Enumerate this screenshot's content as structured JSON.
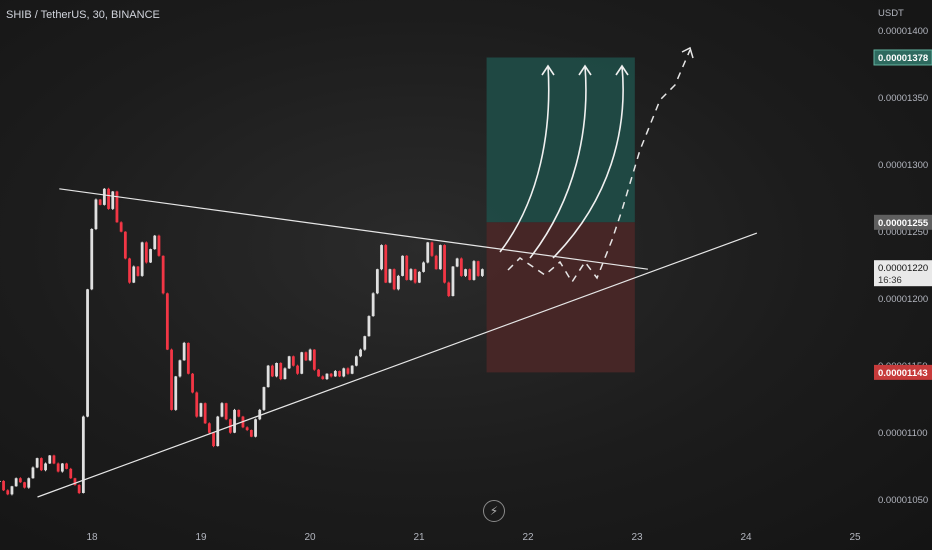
{
  "header": {
    "symbol_line": "SHIB / TetherUS, 30, BINANCE"
  },
  "icons": {
    "bolt": "lightning-bolt-icon"
  },
  "colors": {
    "up_candle": "#e0e0e0",
    "down_candle": "#f23645",
    "target_zone": "#1f4c47",
    "stop_zone": "#4a2727",
    "price_label_target": "#2e6a5f",
    "price_label_stop": "#c73b3b",
    "price_label_entry": "#5f5f5f",
    "price_label_current": "#e9e9e9"
  },
  "chart_data": {
    "type": "candlestick",
    "title": "SHIB / TetherUS, 30, BINANCE",
    "y_unit": "USDT",
    "x_tick_labels": [
      "18",
      "19",
      "20",
      "21",
      "22",
      "23",
      "24",
      "25"
    ],
    "y_tick_labels": [
      "0.00001400",
      "0.00001350",
      "0.00001300",
      "0.00001250",
      "0.00001200",
      "0.00001150",
      "0.00001100",
      "0.00001050"
    ],
    "ylim": [
      1.04e-05,
      1.41e-05
    ],
    "x_start_day": 17.15,
    "closes": [
      1.062e-05,
      1.055e-05,
      1.052e-05,
      1.058e-05,
      1.064e-05,
      1.061e-05,
      1.057e-05,
      1.064e-05,
      1.072e-05,
      1.079e-05,
      1.07e-05,
      1.075e-05,
      1.081e-05,
      1.075e-05,
      1.069e-05,
      1.075e-05,
      1.071e-05,
      1.064e-05,
      1.059e-05,
      1.053e-05,
      1.11e-05,
      1.205e-05,
      1.25e-05,
      1.272e-05,
      1.268e-05,
      1.28e-05,
      1.265e-05,
      1.278e-05,
      1.255e-05,
      1.248e-05,
      1.228e-05,
      1.21e-05,
      1.222e-05,
      1.215e-05,
      1.24e-05,
      1.225e-05,
      1.235e-05,
      1.245e-05,
      1.23e-05,
      1.202e-05,
      1.16e-05,
      1.115e-05,
      1.14e-05,
      1.152e-05,
      1.165e-05,
      1.142e-05,
      1.128e-05,
      1.11e-05,
      1.12e-05,
      1.105e-05,
      1.098e-05,
      1.088e-05,
      1.11e-05,
      1.12e-05,
      1.108e-05,
      1.098e-05,
      1.115e-05,
      1.11e-05,
      1.102e-05,
      1.1e-05,
      1.095e-05,
      1.108e-05,
      1.115e-05,
      1.132e-05,
      1.148e-05,
      1.14e-05,
      1.15e-05,
      1.138e-05,
      1.146e-05,
      1.155e-05,
      1.148e-05,
      1.142e-05,
      1.158e-05,
      1.152e-05,
      1.16e-05,
      1.145e-05,
      1.14e-05,
      1.138e-05,
      1.142e-05,
      1.14e-05,
      1.144e-05,
      1.14e-05,
      1.146e-05,
      1.142e-05,
      1.148e-05,
      1.155e-05,
      1.16e-05,
      1.17e-05,
      1.185e-05,
      1.202e-05,
      1.22e-05,
      1.238e-05,
      1.21e-05,
      1.22e-05,
      1.205e-05,
      1.215e-05,
      1.23e-05,
      1.212e-05,
      1.22e-05,
      1.21e-05,
      1.218e-05,
      1.225e-05,
      1.24e-05,
      1.23e-05,
      1.22e-05,
      1.238e-05,
      1.21e-05,
      1.2e-05,
      1.222e-05,
      1.228e-05,
      1.215e-05,
      1.22e-05,
      1.212e-05,
      1.226e-05,
      1.215e-05,
      1.22e-05
    ],
    "current_price": 1.22e-05,
    "price_labels": [
      {
        "kind": "target",
        "value": 1.378e-05,
        "text": "0.00001378"
      },
      {
        "kind": "entry",
        "value": 1.255e-05,
        "text": "0.00001255"
      },
      {
        "kind": "current",
        "value": 1.22e-05,
        "text": "0.00001220",
        "countdown": "16:36"
      },
      {
        "kind": "stop",
        "value": 1.143e-05,
        "text": "0.00001143"
      }
    ],
    "position": {
      "start_day": 21.62,
      "end_day": 22.98,
      "entry": 1.255e-05,
      "target": 1.378e-05,
      "stop": 1.143e-05
    },
    "trendlines": [
      {
        "name": "descending-resistance",
        "p1": [
          17.7,
          1.28e-05
        ],
        "p2": [
          23.1,
          1.22e-05
        ]
      },
      {
        "name": "ascending-support",
        "p1": [
          17.5,
          1.05e-05
        ],
        "p2": [
          24.1,
          1.247e-05
        ]
      }
    ]
  }
}
